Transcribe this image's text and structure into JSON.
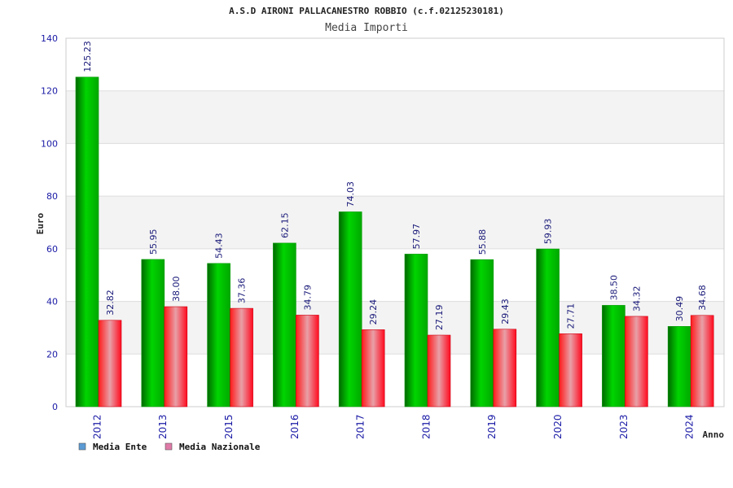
{
  "chart_data": {
    "type": "bar",
    "title": "A.S.D AIRONI PALLACANESTRO ROBBIO (c.f.02125230181)",
    "subtitle": "Media Importi",
    "xlabel": "Anno",
    "ylabel": "Euro",
    "ylim": [
      0,
      140
    ],
    "yticks": [
      0,
      20,
      40,
      60,
      80,
      100,
      120,
      140
    ],
    "grid": true,
    "legend_position": "bottom-left",
    "categories": [
      "2012",
      "2013",
      "2015",
      "2016",
      "2017",
      "2018",
      "2019",
      "2020",
      "2023",
      "2024"
    ],
    "series": [
      {
        "name": "Media Ente",
        "color": "#00c000",
        "legend_color": "#5b9bd5",
        "values": [
          125.23,
          55.95,
          54.43,
          62.15,
          74.03,
          57.97,
          55.88,
          59.93,
          38.5,
          30.49
        ],
        "labels": [
          "125.23",
          "55.95",
          "54.43",
          "62.15",
          "74.03",
          "57.97",
          "55.88",
          "59.93",
          "38.50",
          "30.49"
        ]
      },
      {
        "name": "Media Nazionale",
        "color": "#ee1122",
        "legend_color": "#e07aa8",
        "values": [
          32.82,
          38.0,
          37.36,
          34.79,
          29.24,
          27.19,
          29.43,
          27.71,
          34.32,
          34.68
        ],
        "labels": [
          "32.82",
          "38.00",
          "37.36",
          "34.79",
          "29.24",
          "27.19",
          "29.43",
          "27.71",
          "34.32",
          "34.68"
        ]
      }
    ]
  }
}
